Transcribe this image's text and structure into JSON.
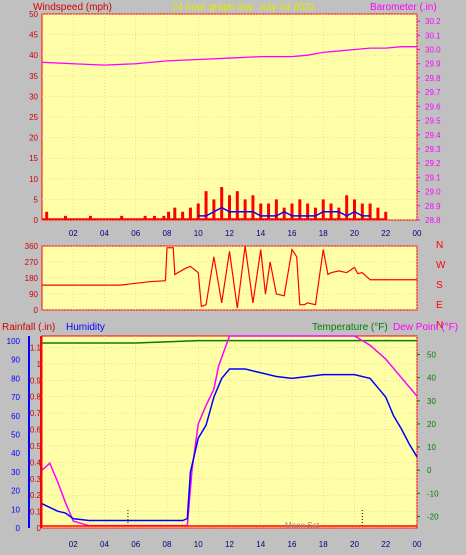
{
  "colors": {
    "background": "#c0c0c0",
    "plot_bg": "#ffffa8",
    "grid": "#e8b8b8",
    "axis": "#ff0000",
    "wind_label": "#d00000",
    "barometer": "#ff00ff",
    "title": "#e8e800",
    "wind_speed": "#ff0000",
    "wind_avg": "#0000ff",
    "wind_low": "#00a000",
    "direction": "#ff0000",
    "rain": "#ff0000",
    "humidity": "#0000ff",
    "temperature": "#008000",
    "dew_point": "#ff00ff",
    "humidity_label": "#0000ff",
    "temp_label": "#008000"
  },
  "header": {
    "left_label": "Windspeed (mph)",
    "title": "24 hour graph day:  July 04 2021",
    "right_label": "Barometer (.in)"
  },
  "bottom_labels": {
    "rainfall": "Rainfall (.in)",
    "humidity": "Humidity",
    "temperature": "Temperature (°F)",
    "dew_point": "Dew Point (°F)",
    "moon": "Moon Set"
  },
  "x_ticks": [
    "02",
    "04",
    "06",
    "08",
    "10",
    "12",
    "14",
    "16",
    "18",
    "20",
    "22",
    "00"
  ],
  "chart_data": [
    {
      "type": "line",
      "name": "wind-barometer",
      "x_ticks": [
        "02",
        "04",
        "06",
        "08",
        "10",
        "12",
        "14",
        "16",
        "18",
        "20",
        "22",
        "00"
      ],
      "y_left": {
        "label": "Windspeed (mph)",
        "ticks": [
          0,
          5,
          10,
          15,
          20,
          25,
          30,
          35,
          40,
          45,
          50
        ],
        "range": [
          0,
          50
        ]
      },
      "y_right": {
        "label": "Barometer (.in)",
        "ticks": [
          28.8,
          28.9,
          29,
          29.1,
          29.2,
          29.3,
          29.4,
          29.5,
          29.6,
          29.7,
          29.8,
          29.9,
          30,
          30.1,
          30.2
        ],
        "range": [
          28.8,
          30.25
        ]
      },
      "barometer_hours": [
        0,
        2,
        4,
        6,
        8,
        10,
        12,
        14,
        16,
        17,
        18,
        19,
        20,
        21,
        22,
        23,
        24
      ],
      "barometer_values": [
        29.91,
        29.9,
        29.89,
        29.9,
        29.92,
        29.93,
        29.94,
        29.95,
        29.95,
        29.96,
        29.98,
        29.99,
        30,
        30.01,
        30.01,
        30.02,
        30.02
      ],
      "wind_gust_hours": [
        0.3,
        1.5,
        3.1,
        5.1,
        6.6,
        7.2,
        7.8,
        8.1,
        8.5,
        9,
        9.5,
        10,
        10.5,
        11,
        11.5,
        12,
        12.5,
        13,
        13.5,
        14,
        14.5,
        15,
        15.5,
        16,
        16.5,
        17,
        17.5,
        18,
        18.5,
        19,
        19.5,
        20,
        20.5,
        21,
        21.5,
        22
      ],
      "wind_gust_values": [
        2,
        1,
        1,
        1,
        1,
        1,
        1,
        2,
        3,
        2,
        3,
        4,
        7,
        5,
        8,
        6,
        7,
        5,
        6,
        4,
        4,
        5,
        3,
        4,
        5,
        4,
        3,
        5,
        4,
        3,
        6,
        5,
        4,
        4,
        3,
        2
      ],
      "wind_avg_hours": [
        10,
        10.5,
        11,
        11.5,
        12,
        12.5,
        13,
        13.5,
        14,
        14.5,
        15,
        15.5,
        16,
        16.5,
        17,
        17.5,
        18,
        18.5,
        19,
        19.5,
        20,
        20.5,
        21
      ],
      "wind_avg_values": [
        1,
        1,
        2,
        3,
        2,
        2,
        2,
        2,
        1,
        1,
        1,
        2,
        1,
        1,
        1,
        1,
        2,
        2,
        2,
        1,
        2,
        1,
        1
      ]
    },
    {
      "type": "line",
      "name": "wind-direction",
      "x_ticks": [
        "02",
        "04",
        "06",
        "08",
        "10",
        "12",
        "14",
        "16",
        "18",
        "20",
        "22",
        "00"
      ],
      "y_ticks": [
        0,
        90,
        180,
        270,
        360
      ],
      "cardinals": [
        "N",
        "W",
        "S",
        "E",
        "N"
      ],
      "hours": [
        0,
        1,
        2,
        3,
        4,
        5,
        6,
        7,
        7.9,
        8.0,
        8.4,
        8.5,
        9.2,
        9.5,
        10.0,
        10.2,
        10.5,
        11.0,
        11.5,
        12.0,
        12.5,
        13.0,
        13.5,
        14.0,
        14.3,
        14.6,
        15.0,
        15.5,
        16.0,
        16.3,
        16.5,
        16.8,
        17.0,
        17.5,
        18.0,
        18.3,
        18.5,
        19.0,
        19.5,
        20.0,
        20.2,
        20.5,
        21.0,
        22,
        23,
        24
      ],
      "values": [
        140,
        140,
        140,
        140,
        140,
        140,
        150,
        160,
        165,
        350,
        350,
        200,
        235,
        245,
        210,
        20,
        30,
        300,
        40,
        330,
        10,
        360,
        40,
        340,
        90,
        270,
        90,
        80,
        340,
        300,
        30,
        30,
        40,
        30,
        340,
        200,
        210,
        220,
        210,
        240,
        205,
        210,
        170,
        170,
        170,
        170
      ]
    },
    {
      "type": "line",
      "name": "rain-humidity-temp",
      "x_ticks": [
        "02",
        "04",
        "06",
        "08",
        "10",
        "12",
        "14",
        "16",
        "18",
        "20",
        "22",
        "00"
      ],
      "y_left_rain": {
        "label": "Rainfall (.in)",
        "ticks": [
          0,
          0.1,
          0.2,
          0.3,
          0.4,
          0.5,
          0.6,
          0.7,
          0.8,
          0.9,
          1,
          1.1
        ],
        "range": [
          0,
          1.17
        ]
      },
      "y_left_humidity": {
        "label": "Humidity",
        "ticks": [
          0,
          10,
          20,
          30,
          40,
          50,
          60,
          70,
          80,
          90,
          100
        ]
      },
      "y_right_temp": {
        "label": "Temperature (°F)",
        "ticks": [
          -20,
          -10,
          0,
          10,
          20,
          30,
          40,
          50
        ],
        "range": [
          -25,
          58
        ]
      },
      "rain_values": {
        "hours": [
          0,
          24
        ],
        "values": [
          0,
          0
        ]
      },
      "humidity_hours": [
        0,
        0.5,
        1,
        1.5,
        2,
        3,
        4,
        5,
        6,
        7,
        8,
        9,
        9.3,
        9.5,
        10,
        10.5,
        11,
        11.5,
        12,
        13,
        14,
        15,
        16,
        17,
        18,
        19,
        20,
        21,
        22,
        22.5,
        23,
        23.5,
        24
      ],
      "humidity_values": [
        13,
        11,
        9,
        8,
        5,
        4,
        4,
        4,
        4,
        4,
        4,
        4,
        5,
        30,
        48,
        55,
        70,
        80,
        85,
        85,
        83,
        81,
        80,
        81,
        82,
        82,
        82,
        80,
        70,
        60,
        53,
        45,
        38
      ],
      "temperature_hours": [
        0,
        6,
        10,
        16,
        20,
        24
      ],
      "temperature_values": [
        55,
        55,
        56,
        56,
        56,
        56
      ],
      "dewpoint_hours": [
        0,
        0.5,
        1,
        1.5,
        2,
        3,
        5,
        8,
        9.3,
        9.6,
        10,
        10.5,
        11,
        11.3,
        12,
        20,
        21,
        22,
        23,
        24
      ],
      "dewpoint_values": [
        0,
        3,
        -5,
        -14,
        -22,
        -24,
        -24,
        -24,
        -24,
        0,
        20,
        28,
        35,
        45,
        58,
        58,
        54,
        48,
        40,
        32
      ],
      "moon_set_hour": 20.5,
      "marker_hour": 5.5
    }
  ]
}
